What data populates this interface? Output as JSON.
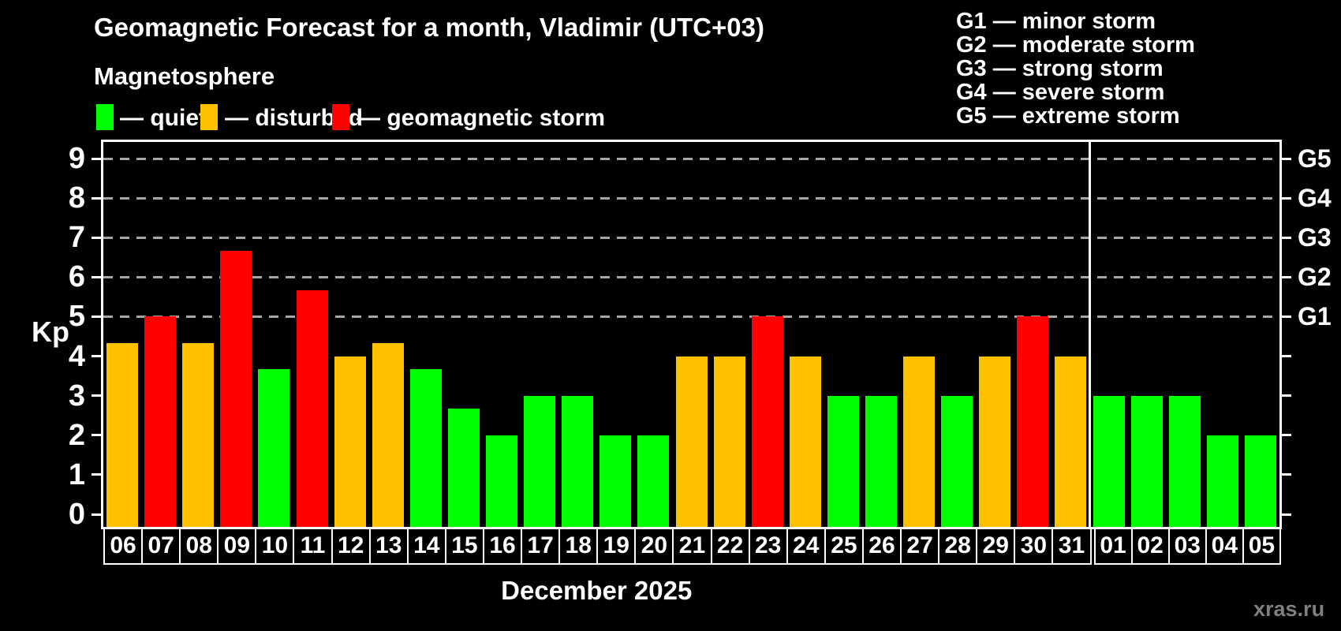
{
  "title": "Geomagnetic Forecast for a month, Vladimir (UTC+03)",
  "subtitle": "Magnetosphere",
  "legend": {
    "items": [
      {
        "key": "quiet",
        "label": "— quiet",
        "color": "#00FF00"
      },
      {
        "key": "disturbed",
        "label": "— disturbed",
        "color": "#FFC000"
      },
      {
        "key": "storm",
        "label": "— geomagnetic storm",
        "color": "#FF0000"
      }
    ]
  },
  "g_legend": [
    "G1 — minor storm",
    "G2 — moderate storm",
    "G3 — strong storm",
    "G4 — severe storm",
    "G5 — extreme storm"
  ],
  "axes": {
    "kp_label": "Kp",
    "y_ticks": [
      0,
      1,
      2,
      3,
      4,
      5,
      6,
      7,
      8,
      9
    ],
    "right_labels": [
      {
        "kp": 5,
        "label": "G1"
      },
      {
        "kp": 6,
        "label": "G2"
      },
      {
        "kp": 7,
        "label": "G3"
      },
      {
        "kp": 8,
        "label": "G4"
      },
      {
        "kp": 9,
        "label": "G5"
      }
    ]
  },
  "month_label": "December 2025",
  "watermark": "xras.ru",
  "chart_data": {
    "type": "bar",
    "title": "Geomagnetic Forecast for a month, Vladimir (UTC+03)",
    "xlabel": "December 2025",
    "ylabel": "Kp",
    "ylim": [
      0,
      9
    ],
    "gridline_kp": [
      5,
      6,
      7,
      8,
      9
    ],
    "grid_color": "#A6A6A6",
    "background_color": "#000000",
    "categories": [
      "06",
      "07",
      "08",
      "09",
      "10",
      "11",
      "12",
      "13",
      "14",
      "15",
      "16",
      "17",
      "18",
      "19",
      "20",
      "21",
      "22",
      "23",
      "24",
      "25",
      "26",
      "27",
      "28",
      "29",
      "30",
      "31",
      "01",
      "02",
      "03",
      "04",
      "05"
    ],
    "values": [
      4.33,
      5,
      4.33,
      6.67,
      3.67,
      5.67,
      4,
      4.33,
      3.67,
      2.67,
      2,
      3,
      3,
      2,
      2,
      4,
      4,
      5,
      4,
      3,
      3,
      4,
      3,
      4,
      5,
      4,
      3,
      3,
      3,
      2,
      2
    ],
    "statuses": [
      "disturbed",
      "storm",
      "disturbed",
      "storm",
      "quiet",
      "storm",
      "disturbed",
      "disturbed",
      "quiet",
      "quiet",
      "quiet",
      "quiet",
      "quiet",
      "quiet",
      "quiet",
      "disturbed",
      "disturbed",
      "storm",
      "disturbed",
      "quiet",
      "quiet",
      "disturbed",
      "quiet",
      "disturbed",
      "storm",
      "disturbed",
      "quiet",
      "quiet",
      "quiet",
      "quiet",
      "quiet"
    ],
    "colors": {
      "quiet": "#00FF00",
      "disturbed": "#FFC000",
      "storm": "#FF0000"
    },
    "december_day_count": 26
  }
}
